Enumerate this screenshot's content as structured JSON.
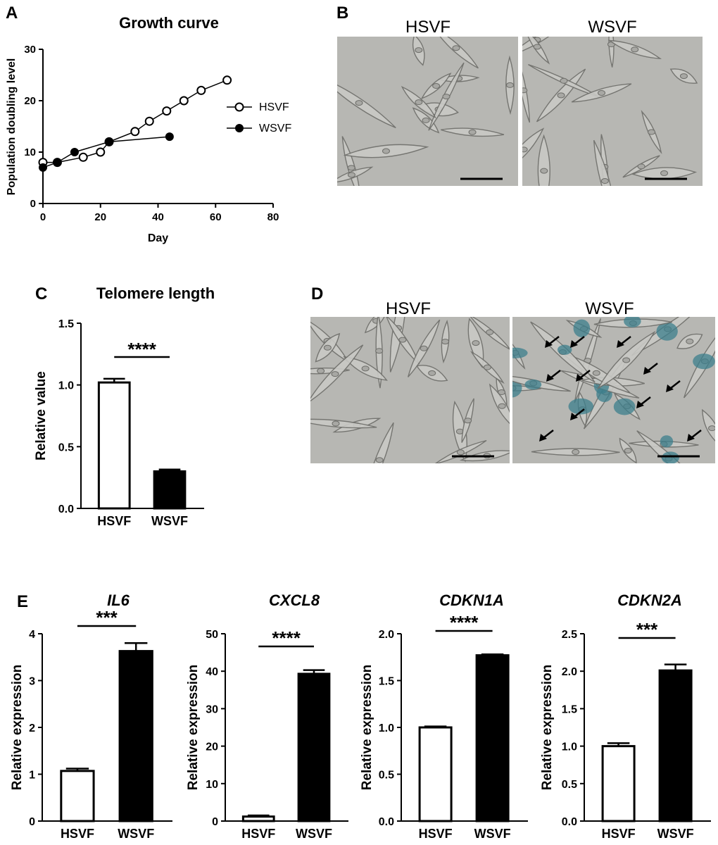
{
  "panels": {
    "A": {
      "letter": "A",
      "chart_data": {
        "type": "line",
        "title": "Growth curve",
        "xlabel": "Day",
        "ylabel": "Population doubling level",
        "xlim": [
          0,
          80
        ],
        "ylim": [
          0,
          30
        ],
        "xticks": [
          "0",
          "20",
          "40",
          "60",
          "80"
        ],
        "yticks": [
          "0",
          "10",
          "20",
          "30"
        ],
        "legend_position": "right",
        "series": [
          {
            "name": "HSVF",
            "marker": "open-circle",
            "x": [
              0,
              5,
              14,
              20,
              23,
              32,
              37,
              43,
              49,
              55,
              64
            ],
            "y": [
              8,
              8,
              9,
              10,
              12,
              14,
              16,
              18,
              20,
              22,
              24
            ]
          },
          {
            "name": "WSVF",
            "marker": "filled-circle",
            "x": [
              0,
              5,
              11,
              23,
              44
            ],
            "y": [
              7,
              8,
              10,
              12,
              13
            ]
          }
        ]
      }
    },
    "B": {
      "letter": "B",
      "labels": [
        "HSVF",
        "WSVF"
      ]
    },
    "C": {
      "letter": "C",
      "chart_data": {
        "type": "bar",
        "title": "Telomere length",
        "ylabel": "Relative value",
        "categories": [
          "HSVF",
          "WSVF"
        ],
        "values": [
          1.02,
          0.3
        ],
        "errors": [
          0.03,
          0.015
        ],
        "ylim": [
          0,
          1.5
        ],
        "yticks": [
          "0.0",
          "0.5",
          "1.0",
          "1.5"
        ],
        "significance": "****"
      }
    },
    "D": {
      "letter": "D",
      "labels": [
        "HSVF",
        "WSVF"
      ]
    },
    "E": {
      "letter": "E",
      "chart_data": [
        {
          "type": "bar",
          "title": "IL6",
          "ylabel": "Relative expression",
          "categories": [
            "HSVF",
            "WSVF"
          ],
          "values": [
            1.07,
            3.63
          ],
          "errors": [
            0.05,
            0.17
          ],
          "ylim": [
            0,
            4
          ],
          "yticks": [
            "0",
            "1",
            "2",
            "3",
            "4"
          ],
          "significance": "***"
        },
        {
          "type": "bar",
          "title": "CXCL8",
          "ylabel": "Relative expression",
          "categories": [
            "HSVF",
            "WSVF"
          ],
          "values": [
            1.2,
            39.3
          ],
          "errors": [
            0.3,
            1.0
          ],
          "ylim": [
            0,
            50
          ],
          "yticks": [
            "0",
            "10",
            "20",
            "30",
            "40",
            "50"
          ],
          "significance": "****"
        },
        {
          "type": "bar",
          "title": "CDKN1A",
          "ylabel": "Relative expression",
          "categories": [
            "HSVF",
            "WSVF"
          ],
          "values": [
            1.0,
            1.77
          ],
          "errors": [
            0.01,
            0.01
          ],
          "ylim": [
            0,
            2.0
          ],
          "yticks": [
            "0.0",
            "0.5",
            "1.0",
            "1.5",
            "2.0"
          ],
          "significance": "****"
        },
        {
          "type": "bar",
          "title": "CDKN2A",
          "ylabel": "Relative expression",
          "categories": [
            "HSVF",
            "WSVF"
          ],
          "values": [
            1.0,
            2.01
          ],
          "errors": [
            0.04,
            0.08
          ],
          "ylim": [
            0,
            2.5
          ],
          "yticks": [
            "0.0",
            "0.5",
            "1.0",
            "1.5",
            "2.0",
            "2.5"
          ],
          "significance": "***"
        }
      ]
    }
  },
  "colors": {
    "axis": "#000000",
    "bar_open": "#ffffff",
    "bar_filled": "#000000",
    "micrograph_bg": "#b7b7b3",
    "cell_outline": "#6e6e6a",
    "sa_beta_gal": "#3c7f8c"
  }
}
